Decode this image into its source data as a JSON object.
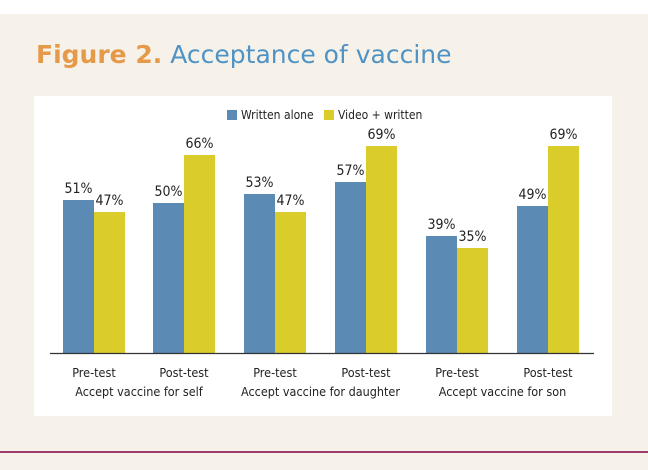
{
  "figure": {
    "label": "Figure 2.",
    "title": "Acceptance of vaccine"
  },
  "colors": {
    "written_alone": "#5b8ab5",
    "video_written": "#d9cc2b",
    "title_label": "#e59a4a",
    "title_text": "#4f93c5",
    "background": "#f7f2e9",
    "bottom_rule": "#9b3d6a"
  },
  "chart_data": {
    "type": "bar",
    "categories": [
      "Pre-test",
      "Post-test",
      "Pre-test",
      "Post-test",
      "Pre-test",
      "Post-test"
    ],
    "groups": [
      "Accept vaccine for self",
      "Accept vaccine for daughter",
      "Accept vaccine for son"
    ],
    "series": [
      {
        "name": "Written alone",
        "values": [
          51,
          50,
          53,
          57,
          39,
          49
        ],
        "labels": [
          "51%",
          "50%",
          "53%",
          "57%",
          "39%",
          "49%"
        ]
      },
      {
        "name": "Video + written",
        "values": [
          47,
          66,
          47,
          69,
          35,
          69
        ],
        "labels": [
          "47%",
          "66%",
          "47%",
          "69%",
          "35%",
          "69%"
        ]
      }
    ],
    "unit": "%",
    "ylim": [
      0,
      80
    ],
    "legend_position": "top-center",
    "grid": false,
    "yaxis_visible": false
  }
}
